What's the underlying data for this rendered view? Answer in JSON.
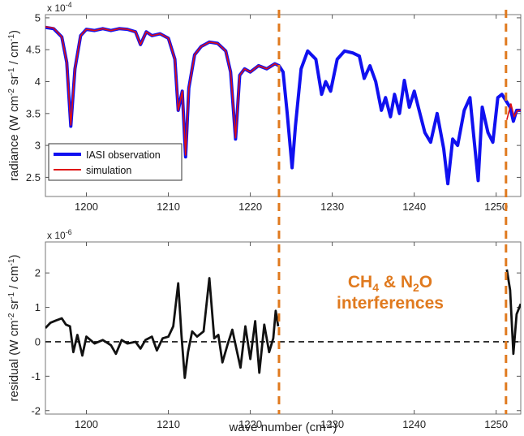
{
  "chart_data": [
    {
      "type": "line",
      "ylabel": "radiance (W cm-2 sr-1 / cm-1)",
      "scale_label": "x 10-4",
      "xlim": [
        1195,
        1253
      ],
      "ylim": [
        2.2,
        5.05
      ],
      "xticks": [
        1200,
        1210,
        1220,
        1230,
        1240,
        1250
      ],
      "yticks": [
        2.5,
        3,
        3.5,
        4,
        4.5,
        5
      ],
      "legend_position": "lower-left",
      "series": [
        {
          "name": "IASI observation",
          "color": "#1010F0",
          "x": [
            1195,
            1196,
            1197,
            1197.6,
            1198.1,
            1198.6,
            1199.3,
            1200,
            1201,
            1202,
            1203,
            1204,
            1205,
            1206,
            1206.6,
            1207.3,
            1208,
            1209,
            1210,
            1210.8,
            1211.2,
            1211.7,
            1212.1,
            1212.5,
            1213.2,
            1214,
            1215,
            1216,
            1217,
            1217.6,
            1218.2,
            1218.7,
            1219.3,
            1220,
            1221,
            1222,
            1223,
            1223.5,
            1224,
            1224.5,
            1225.1,
            1225.5,
            1226.2,
            1227,
            1228,
            1228.7,
            1229.2,
            1229.8,
            1230.6,
            1231.5,
            1232.5,
            1233.3,
            1233.9,
            1234.6,
            1235.3,
            1236,
            1236.5,
            1237.1,
            1237.6,
            1238.2,
            1238.8,
            1239.4,
            1240,
            1240.7,
            1241.3,
            1242,
            1242.8,
            1243.6,
            1244.1,
            1244.7,
            1245.3,
            1246.1,
            1246.8,
            1247.3,
            1247.8,
            1248.3,
            1249,
            1249.6,
            1250.2,
            1250.7,
            1251.2,
            1251.7,
            1252.1,
            1252.5,
            1253
          ],
          "y": [
            4.85,
            4.83,
            4.7,
            4.3,
            3.3,
            4.2,
            4.72,
            4.82,
            4.8,
            4.83,
            4.8,
            4.83,
            4.82,
            4.78,
            4.58,
            4.78,
            4.72,
            4.75,
            4.68,
            4.35,
            3.55,
            3.85,
            2.82,
            3.9,
            4.42,
            4.55,
            4.62,
            4.6,
            4.48,
            4.15,
            3.1,
            4.1,
            4.2,
            4.15,
            4.25,
            4.2,
            4.28,
            4.25,
            4.15,
            3.5,
            2.65,
            3.3,
            4.2,
            4.48,
            4.35,
            3.8,
            4.0,
            3.85,
            4.35,
            4.48,
            4.45,
            4.4,
            4.05,
            4.25,
            4.0,
            3.55,
            3.75,
            3.45,
            3.8,
            3.5,
            4.02,
            3.6,
            3.85,
            3.5,
            3.2,
            3.05,
            3.5,
            2.95,
            2.4,
            3.1,
            3.0,
            3.55,
            3.75,
            3.1,
            2.45,
            3.6,
            3.2,
            3.05,
            3.75,
            3.8,
            3.7,
            3.6,
            3.38,
            3.55,
            3.55
          ]
        },
        {
          "name": "simulation",
          "color": "#E01010",
          "x": [
            1195,
            1196,
            1197,
            1197.6,
            1198.1,
            1198.6,
            1199.3,
            1200,
            1201,
            1202,
            1203,
            1204,
            1205,
            1206,
            1206.6,
            1207.3,
            1208,
            1209,
            1210,
            1210.8,
            1211.2,
            1211.7,
            1212.1,
            1212.5,
            1213.2,
            1214,
            1215,
            1216,
            1217,
            1217.6,
            1218.2,
            1218.7,
            1219.3,
            1220,
            1221,
            1222,
            1223,
            1223.4,
            1251.3,
            1251.8,
            1252.2,
            1252.6,
            1253
          ],
          "y": [
            4.86,
            4.84,
            4.7,
            4.3,
            3.32,
            4.2,
            4.72,
            4.82,
            4.8,
            4.83,
            4.8,
            4.83,
            4.82,
            4.78,
            4.58,
            4.78,
            4.72,
            4.75,
            4.68,
            4.35,
            3.55,
            3.85,
            2.85,
            3.9,
            4.42,
            4.55,
            4.62,
            4.6,
            4.48,
            4.15,
            3.12,
            4.1,
            4.2,
            4.15,
            4.25,
            4.2,
            4.28,
            4.25,
            3.4,
            3.65,
            3.45,
            3.55,
            3.55
          ]
        }
      ]
    },
    {
      "type": "line",
      "xlabel": "wave number (cm-1)",
      "ylabel": "residual (W cm-2 sr-1 / cm-1)",
      "scale_label": "x 10-6",
      "xlim": [
        1195,
        1253
      ],
      "ylim": [
        -2.1,
        2.9
      ],
      "xticks": [
        1200,
        1210,
        1220,
        1230,
        1240,
        1250
      ],
      "yticks": [
        -2,
        -1,
        0,
        1,
        2
      ],
      "zero_line": "dashed",
      "series": [
        {
          "x": [
            1195,
            1195.6,
            1196.3,
            1197,
            1197.5,
            1198,
            1198.4,
            1198.9,
            1199.5,
            1200,
            1201,
            1202,
            1203,
            1203.6,
            1204.3,
            1205,
            1206,
            1206.6,
            1207.2,
            1208,
            1208.6,
            1209.3,
            1210,
            1210.6,
            1211.2,
            1211.6,
            1212,
            1212.4,
            1212.9,
            1213.5,
            1214.3,
            1215,
            1215.6,
            1216.1,
            1216.6,
            1217.2,
            1217.8,
            1218.3,
            1218.8,
            1219.4,
            1220,
            1220.6,
            1221.1,
            1221.7,
            1222.3,
            1222.8,
            1223.1,
            1223.4
          ],
          "y": [
            0.4,
            0.55,
            0.62,
            0.68,
            0.5,
            0.45,
            -0.3,
            0.2,
            -0.4,
            0.15,
            -0.05,
            0.05,
            -0.1,
            -0.35,
            0.05,
            -0.05,
            0.0,
            -0.2,
            0.05,
            0.15,
            -0.25,
            0.1,
            0.15,
            0.45,
            1.7,
            0.2,
            -1.05,
            -0.3,
            0.3,
            0.15,
            0.3,
            1.85,
            0.1,
            0.2,
            -0.6,
            -0.1,
            0.35,
            -0.2,
            -0.75,
            0.45,
            -0.5,
            0.6,
            -0.9,
            0.5,
            -0.3,
            0.1,
            0.9,
            0.45
          ]
        },
        {
          "x": [
            1251.3,
            1251.7,
            1252.1,
            1252.5,
            1253
          ],
          "y": [
            2.1,
            1.5,
            -0.35,
            0.8,
            1.1
          ]
        }
      ],
      "annotation": [
        "CH4 & N2O",
        "interferences"
      ]
    }
  ],
  "vertical_lines_x": [
    1223.5,
    1251.2
  ]
}
